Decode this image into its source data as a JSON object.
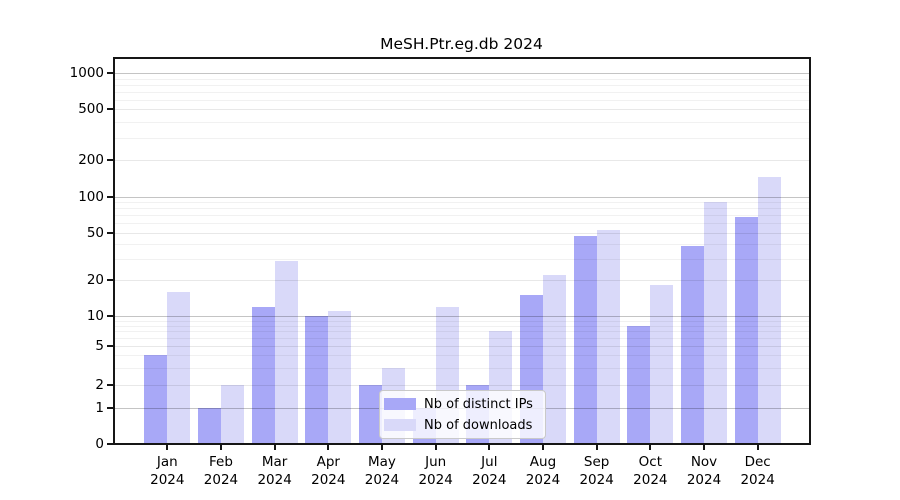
{
  "title": "MeSH.Ptr.eg.db 2024",
  "chart_data": {
    "type": "bar",
    "title": "MeSH.Ptr.eg.db 2024",
    "scale": "pseudo-log",
    "grid": true,
    "legend_position": "inside-bottom-center",
    "categories": [
      "Jan",
      "Feb",
      "Mar",
      "Apr",
      "May",
      "Jun",
      "Jul",
      "Aug",
      "Sep",
      "Oct",
      "Nov",
      "Dec"
    ],
    "year_label": "2024",
    "series": [
      {
        "name": "Nb of distinct IPs",
        "color": "#a8a8f7",
        "values": [
          4,
          1,
          12,
          10,
          2,
          1,
          2,
          15,
          47,
          8,
          39,
          68
        ]
      },
      {
        "name": "Nb of downloads",
        "color": "#d9d9f9",
        "values": [
          16,
          2,
          29,
          11,
          3,
          12,
          7,
          22,
          53,
          18,
          90,
          145
        ]
      }
    ],
    "yticks": [
      0,
      1,
      2,
      5,
      10,
      20,
      50,
      100,
      200,
      500,
      1000
    ],
    "ylim": [
      0,
      1000
    ],
    "minor_gridlines": [
      3,
      4,
      6,
      7,
      8,
      9,
      30,
      40,
      60,
      70,
      80,
      90,
      300,
      400,
      600,
      700,
      800,
      900
    ],
    "xlabel": "",
    "ylabel": ""
  },
  "colors": {
    "bar_ips": "#a8a8f7",
    "bar_downloads": "#d9d9f9",
    "frame": "#161616",
    "grid_major": "#c4c4c4",
    "grid_minor": "#f0f0f0",
    "legend_border": "#c9c9c9",
    "background": "#ffffff"
  }
}
